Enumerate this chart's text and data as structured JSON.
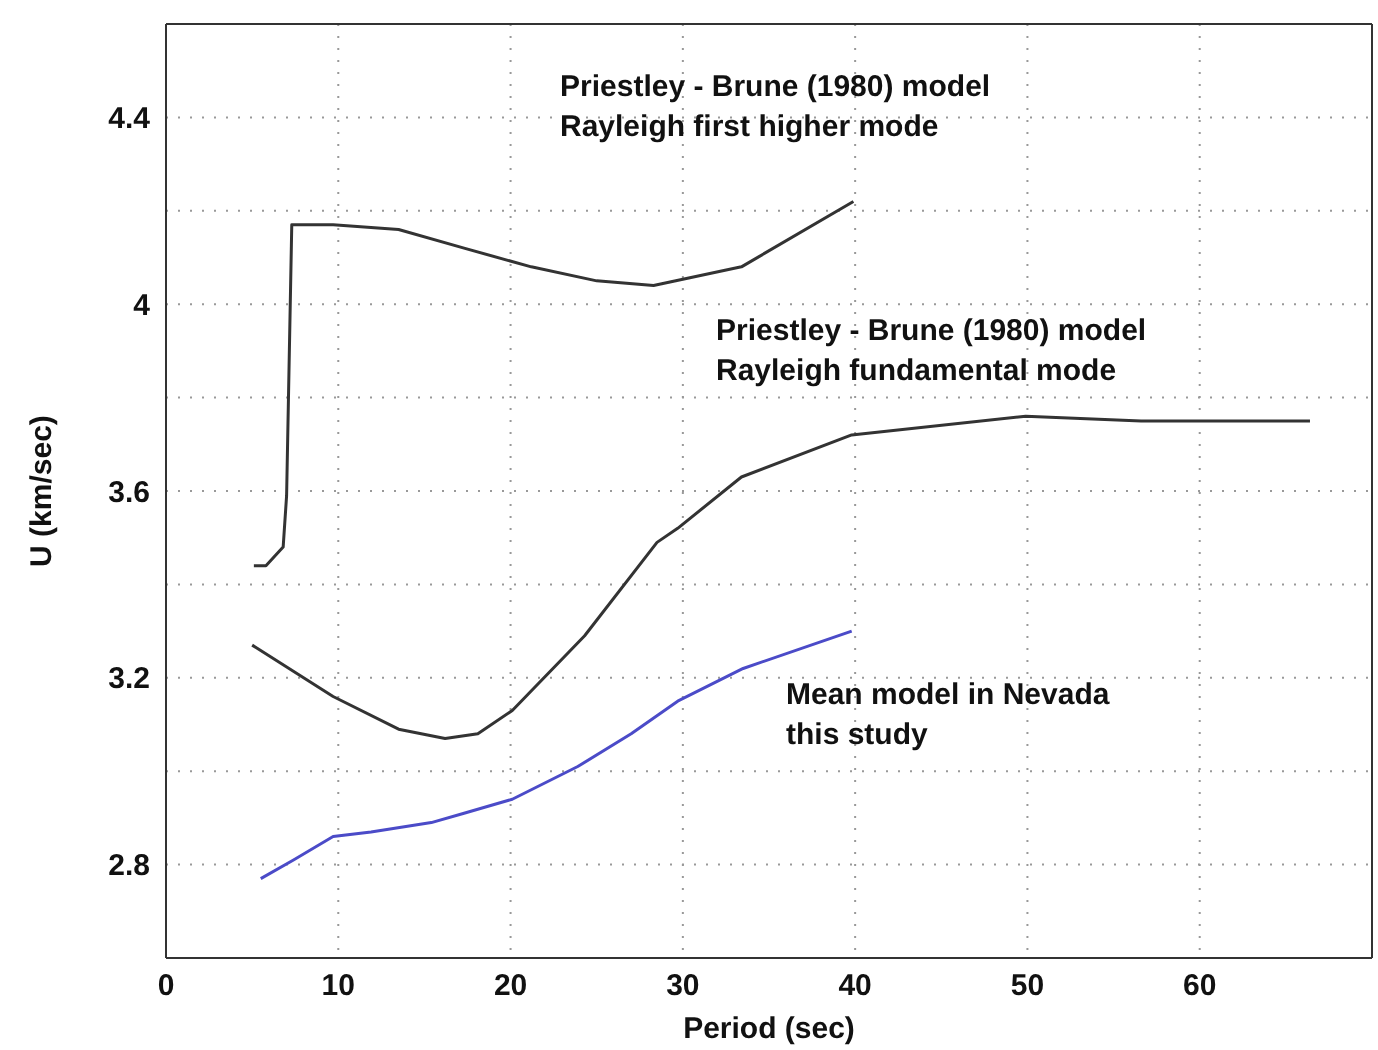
{
  "chart_data": {
    "type": "line",
    "xlabel": "Period (sec)",
    "ylabel": "U (km/sec)",
    "xlim": [
      0,
      70
    ],
    "xticks": [
      0,
      10,
      20,
      30,
      40,
      50,
      60
    ],
    "ylim": [
      2.6,
      4.6
    ],
    "yticks": [
      2.8,
      {
        "value": 3.0,
        "label": null
      },
      3.2,
      {
        "value": 3.4,
        "label": null
      },
      3.6,
      {
        "value": 3.8,
        "label": null
      },
      4,
      {
        "value": 4.2,
        "label": null
      },
      4.4
    ],
    "grid": true,
    "marker": "none",
    "line_style": "solid",
    "series": [
      {
        "color": "#333333",
        "x": [
          5.1,
          5.8,
          6.8,
          7.0,
          7.3,
          9.7,
          13.5,
          17.3,
          21.2,
          25,
          28.3,
          33.4,
          39.9
        ],
        "values": [
          3.44,
          3.44,
          3.48,
          3.59,
          4.17,
          4.17,
          4.16,
          4.12,
          4.08,
          4.05,
          4.04,
          4.08,
          4.22
        ]
      },
      {
        "color": "#333333",
        "x": [
          5.0,
          9.7,
          13.5,
          16.2,
          18.1,
          20.1,
          24.3,
          28.5,
          29.7,
          33.4,
          39.8,
          49.9,
          56.6,
          66.4
        ],
        "values": [
          3.27,
          3.16,
          3.09,
          3.07,
          3.08,
          3.13,
          3.29,
          3.49,
          3.52,
          3.63,
          3.72,
          3.76,
          3.75,
          3.75
        ]
      },
      {
        "color": "#4b4bc8",
        "x": [
          5.5,
          7.4,
          9.7,
          11.9,
          15.4,
          17.3,
          20.1,
          23.9,
          27,
          29.7,
          33.5,
          39.8
        ],
        "values": [
          2.77,
          2.81,
          2.86,
          2.87,
          2.89,
          2.91,
          2.94,
          3.01,
          3.08,
          3.15,
          3.22,
          3.3
        ]
      }
    ],
    "annotations": [
      "Priestley - Brune (1980) model\nRayleigh first higher mode",
      "Priestley - Brune (1980) model\nRayleigh fundamental mode",
      "Mean model in Nevada\nthis study"
    ]
  }
}
